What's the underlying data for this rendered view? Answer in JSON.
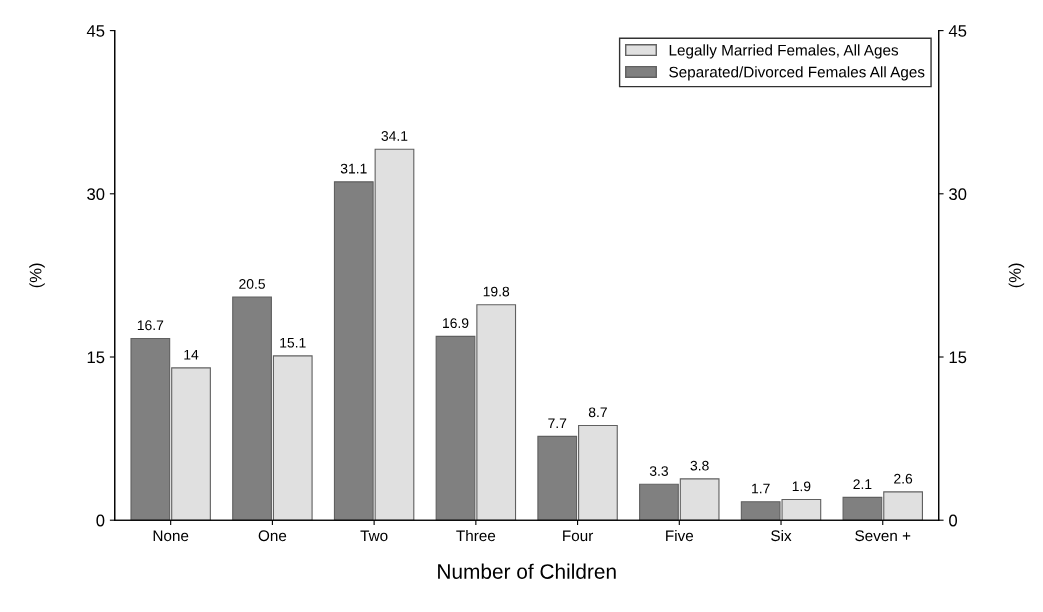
{
  "chart_data": {
    "type": "bar",
    "xlabel": "Number of Children",
    "ylabel": "(%)",
    "y2label": "(%)",
    "categories": [
      "None",
      "One",
      "Two",
      "Three",
      "Four",
      "Five",
      "Six",
      "Seven +"
    ],
    "series": [
      {
        "name": "Separated/Divorced Females All Ages",
        "color": "#808080",
        "values": [
          16.7,
          20.5,
          31.1,
          16.9,
          7.7,
          3.3,
          1.7,
          2.1
        ]
      },
      {
        "name": "Legally Married Females, All Ages",
        "color": "#e0e0e0",
        "values": [
          14,
          15.1,
          34.1,
          19.8,
          8.7,
          3.8,
          1.9,
          2.6
        ]
      }
    ],
    "ylim": [
      0,
      45
    ],
    "yticks": [
      0,
      15,
      30,
      45
    ],
    "y2lim": [
      0,
      45
    ],
    "y2ticks": [
      0,
      15,
      30,
      45
    ],
    "data_labels": true,
    "legend": "top right",
    "grid": false
  }
}
